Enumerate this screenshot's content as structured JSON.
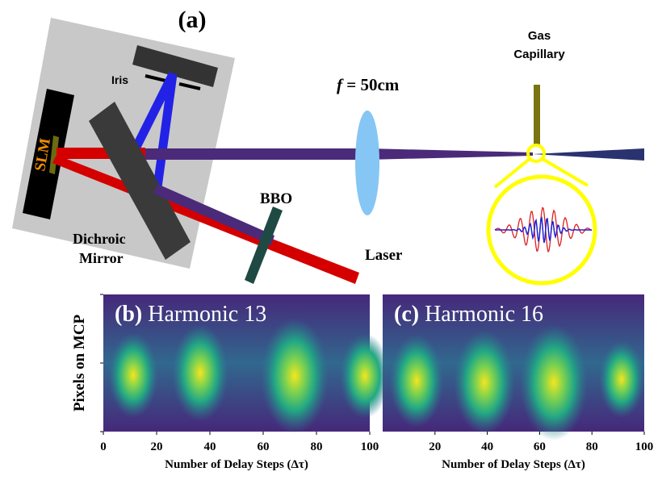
{
  "panel_a": {
    "label": "(a)",
    "iris": "Iris",
    "slm": "SLM",
    "dichroic": [
      "Dichroic",
      "Mirror"
    ],
    "lens": {
      "f": "f",
      "rest": "= 50cm"
    },
    "capillary": [
      "Gas",
      "Capillary"
    ],
    "bbo": "BBO",
    "laser": "Laser"
  },
  "heatmaps": [
    {
      "label": "(b)",
      "title": "Harmonic  13",
      "xlim": [
        0,
        100
      ],
      "xticks": [
        0,
        20,
        40,
        60,
        80,
        100
      ]
    },
    {
      "label": "(c)",
      "title": "Harmonic  16",
      "xlim": [
        0,
        100
      ],
      "xticks": [
        20,
        40,
        60,
        80,
        100
      ]
    }
  ],
  "ylabel": "Pixels on MCP",
  "xlabel": "Number of Delay Steps (Δτ)"
}
